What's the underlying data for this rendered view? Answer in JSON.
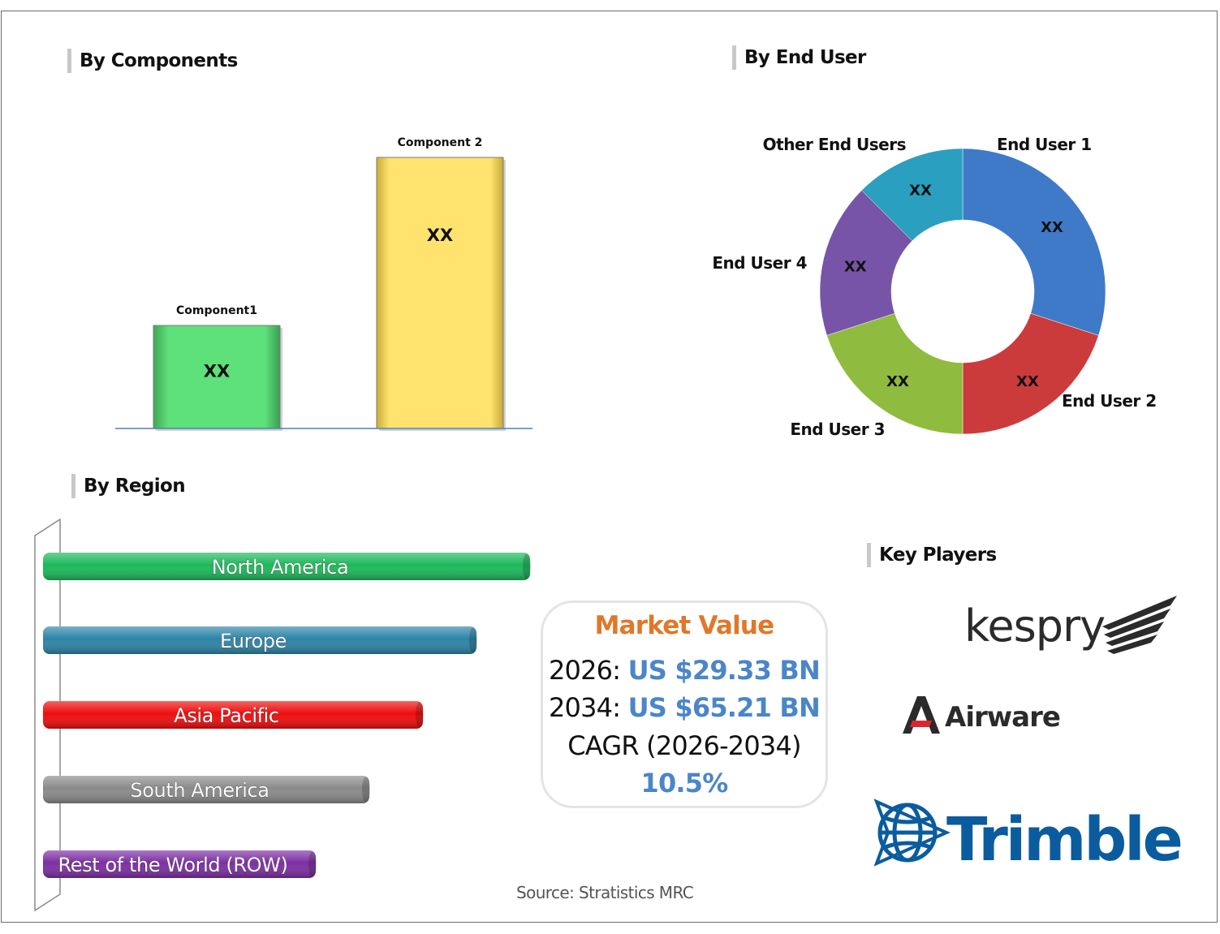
{
  "sections": {
    "components_title": "By Components",
    "end_user_title": "By End User",
    "region_title": "By Region",
    "key_players_title": "Key Players"
  },
  "chart_data": [
    {
      "type": "bar",
      "title": "By Components",
      "categories": [
        "Component1",
        "Component 2"
      ],
      "data_labels": [
        "XX",
        "XX"
      ],
      "values": [
        38,
        100
      ],
      "colors": [
        "#5ee07a",
        "#ffe36e"
      ]
    },
    {
      "type": "pie",
      "title": "By End User",
      "categories": [
        "End User 1",
        "End User 2",
        "End User 3",
        "End User 4",
        "Other End Users"
      ],
      "data_labels": [
        "XX",
        "XX",
        "XX",
        "XX",
        "XX"
      ],
      "values": [
        30,
        20,
        20,
        17.5,
        12.5
      ],
      "colors": [
        "#3f7ac9",
        "#cc3b3b",
        "#8fbb3f",
        "#7754a8",
        "#2a9fc0"
      ]
    },
    {
      "type": "bar",
      "title": "By Region",
      "orientation": "horizontal",
      "categories": [
        "North America",
        "Europe",
        "Asia Pacific",
        "South America",
        "Rest of the World (ROW)"
      ],
      "values": [
        100,
        89,
        78,
        67,
        56
      ],
      "colors": [
        "#1cb85a",
        "#2d84a6",
        "#ef0d0d",
        "#8a8a8a",
        "#7d2fa3"
      ]
    }
  ],
  "market_value": {
    "title": "Market Value",
    "year1_label": "2026:",
    "year1_value": "US $29.33 BN",
    "year2_label": "2034:",
    "year2_value": "US $65.21 BN",
    "cagr_label": "CAGR (2026-2034)",
    "cagr_value": "10.5%"
  },
  "key_players": [
    "kespry",
    "Airware",
    "Trimble"
  ],
  "source": "Source: Stratistics MRC"
}
